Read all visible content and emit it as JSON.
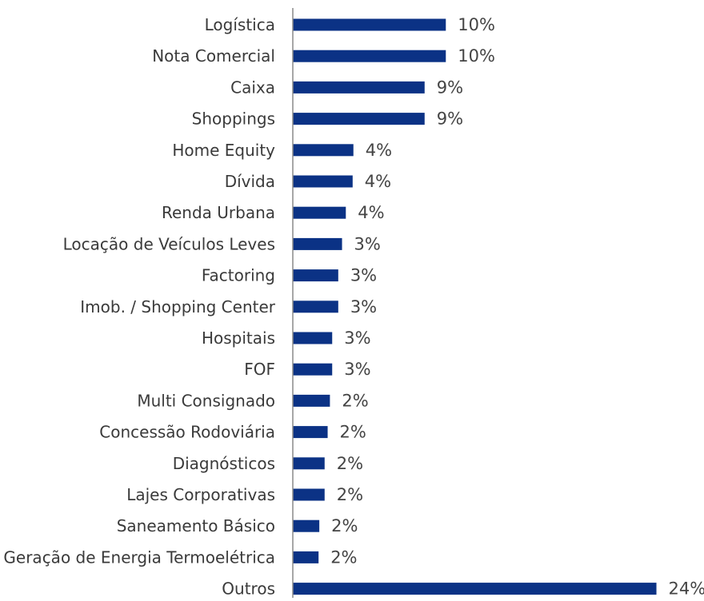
{
  "chart_data": {
    "type": "bar",
    "orientation": "horizontal",
    "title": "",
    "xlabel": "",
    "ylabel": "",
    "categories": [
      "Logística",
      "Nota Comercial",
      "Caixa",
      "Shoppings",
      "Home Equity",
      "Dívida",
      "Renda Urbana",
      "Locação de Veículos Leves",
      "Factoring",
      "Imob. / Shopping Center",
      "Hospitais",
      "FOF",
      "Multi Consignado",
      "Concessão Rodoviária",
      "Diagnósticos",
      "Lajes Corporativas",
      "Saneamento Básico",
      "Geração de Energia Termoelétrica",
      "Outros"
    ],
    "values": [
      10.1,
      10.1,
      8.7,
      8.7,
      4.0,
      3.95,
      3.5,
      3.25,
      3.0,
      3.0,
      2.6,
      2.6,
      2.45,
      2.3,
      2.1,
      2.1,
      1.75,
      1.7,
      24.0
    ],
    "value_labels": [
      "10%",
      "10%",
      "9%",
      "9%",
      "4%",
      "4%",
      "4%",
      "3%",
      "3%",
      "3%",
      "3%",
      "3%",
      "2%",
      "2%",
      "2%",
      "2%",
      "2%",
      "2%",
      "24%"
    ],
    "xlim": [
      0,
      24.5
    ],
    "grid": false,
    "legend": "none",
    "bar_color": "#0b3285",
    "axis_color": "#8a8a8a"
  }
}
